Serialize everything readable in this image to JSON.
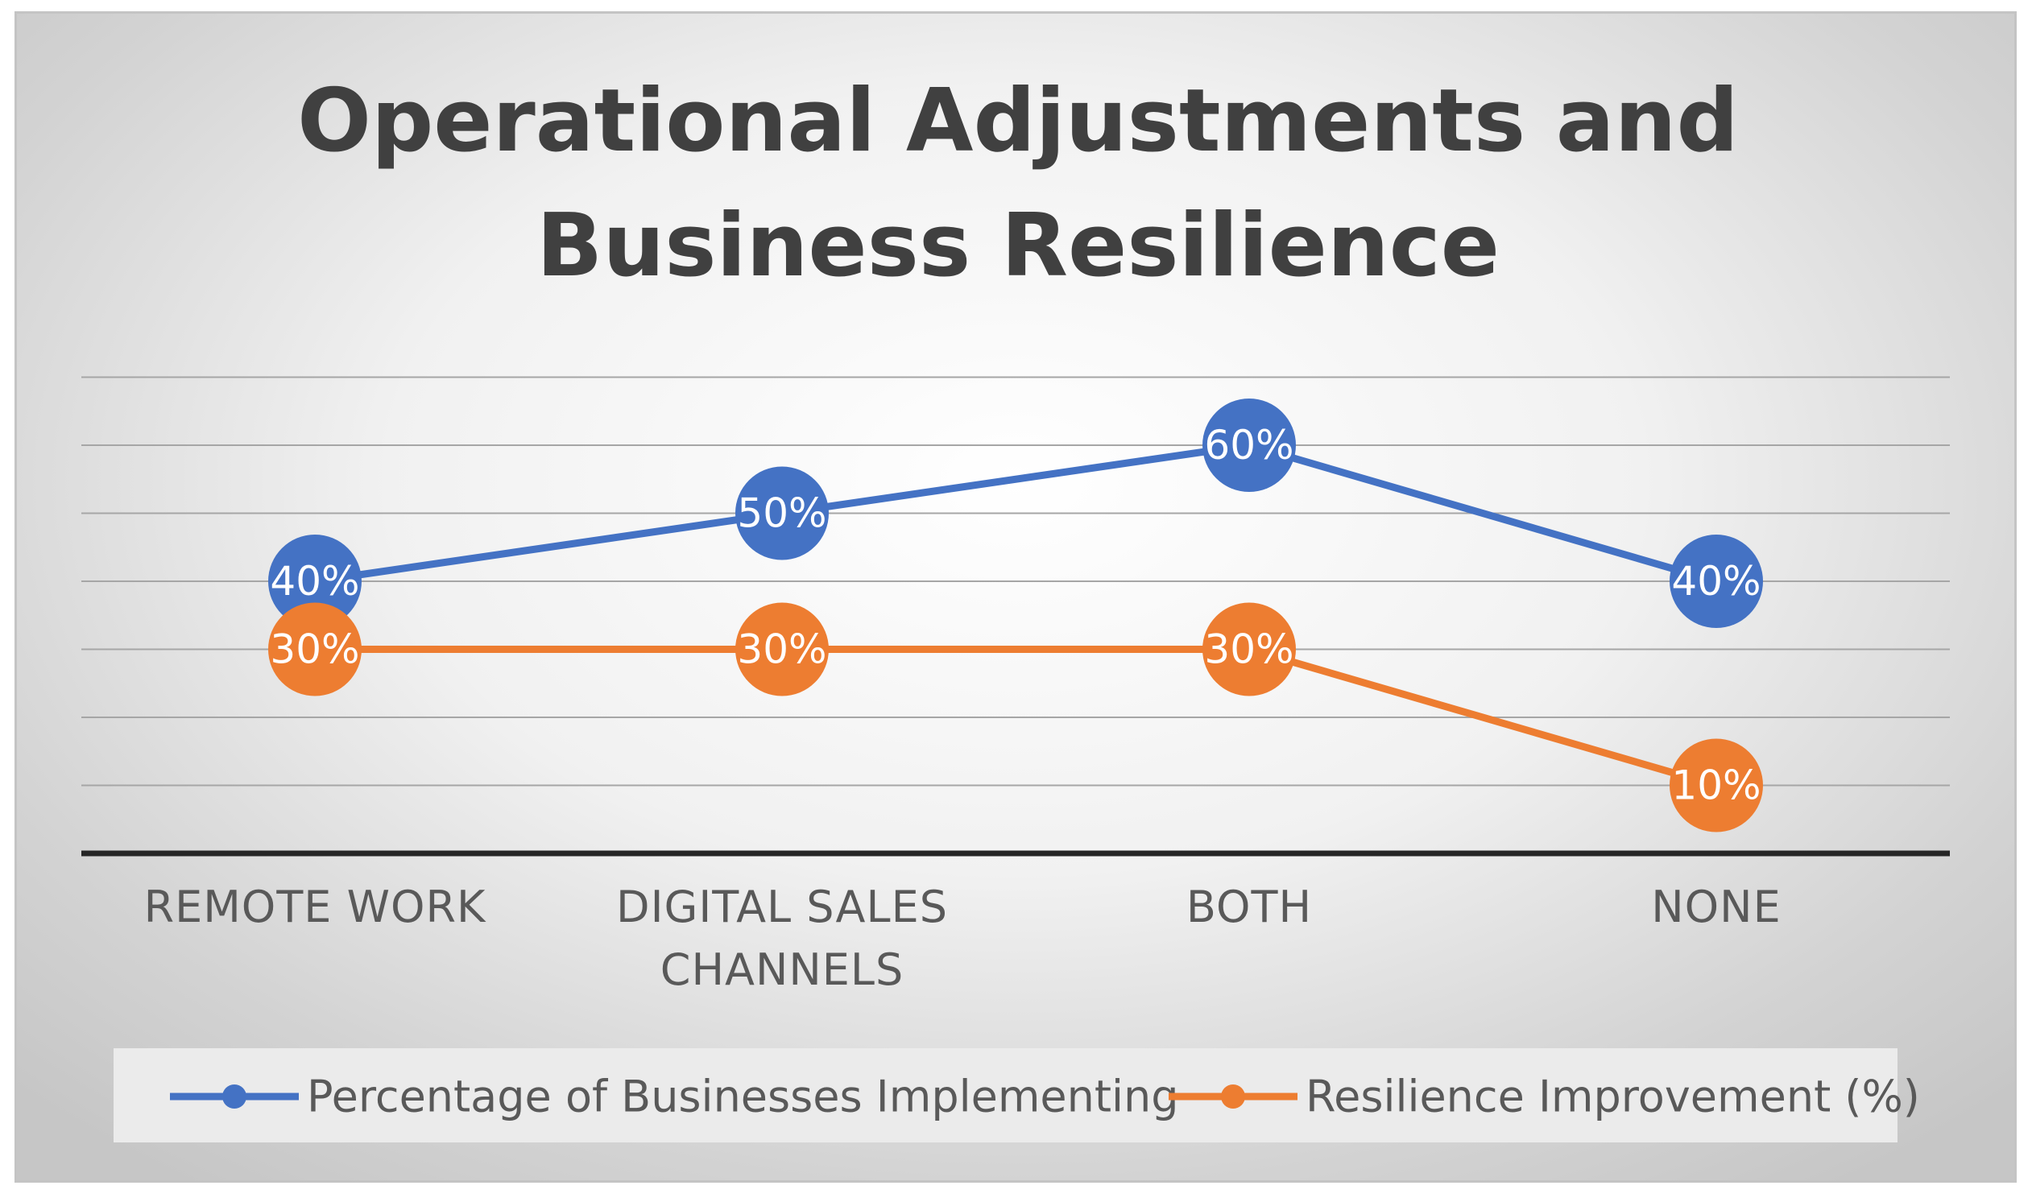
{
  "chart_data": {
    "type": "line",
    "title": "Operational Adjustments and Business Resilience",
    "title_lines": [
      "Operational Adjustments and",
      "Business Resilience"
    ],
    "categories": [
      "REMOTE WORK",
      "DIGITAL SALES CHANNELS",
      "BOTH",
      "NONE"
    ],
    "category_lines": [
      [
        "REMOTE WORK"
      ],
      [
        "DIGITAL SALES",
        "CHANNELS"
      ],
      [
        "BOTH"
      ],
      [
        "NONE"
      ]
    ],
    "series": [
      {
        "name": "Percentage of Businesses Implementing",
        "values": [
          40,
          50,
          60,
          40
        ],
        "labels": [
          "40%",
          "50%",
          "60%",
          "40%"
        ],
        "color": "#4472c4"
      },
      {
        "name": "Resilience Improvement (%)",
        "values": [
          30,
          30,
          30,
          10
        ],
        "labels": [
          "30%",
          "30%",
          "30%",
          "10%"
        ],
        "color": "#ed7d31"
      }
    ],
    "ylim": [
      0,
      70
    ],
    "ytick_step": 10,
    "grid": true,
    "y_axis_labels_shown": false,
    "legend_position": "bottom"
  }
}
